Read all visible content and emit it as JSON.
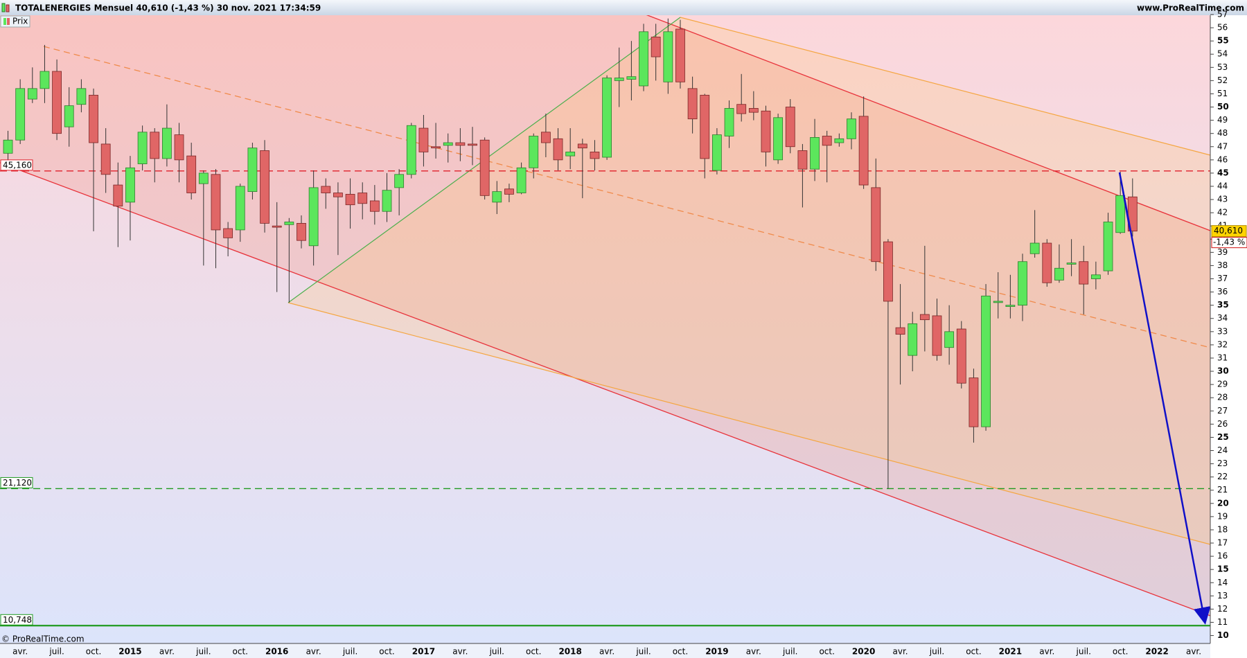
{
  "chart_data": {
    "type": "candlestick",
    "title": "TOTALENERGIES Mensuel 40,610 (-1,43 %) 30 nov. 2021 17:34:59",
    "website": "www.ProRealTime.com",
    "copyright": "© ProRealTime.com",
    "legend": "Prix",
    "up_color": "#5ce65c",
    "down_color": "#e06666",
    "categories": [
      null,
      "avr.",
      null,
      null,
      "juil.",
      null,
      null,
      "oct.",
      null,
      null,
      "2015",
      null,
      null,
      "avr.",
      null,
      null,
      "juil.",
      null,
      null,
      "oct.",
      null,
      null,
      "2016",
      null,
      null,
      "avr.",
      null,
      null,
      "juil.",
      null,
      null,
      "oct.",
      null,
      null,
      "2017",
      null,
      null,
      "avr.",
      null,
      null,
      "juil.",
      null,
      null,
      "oct.",
      null,
      null,
      "2018",
      null,
      null,
      "avr.",
      null,
      null,
      "juil.",
      null,
      null,
      "oct.",
      null,
      null,
      "2019",
      null,
      null,
      "avr.",
      null,
      null,
      "juil.",
      null,
      null,
      "oct.",
      null,
      null,
      "2020",
      null,
      null,
      "avr.",
      null,
      null,
      "juil.",
      null,
      null,
      "oct.",
      null,
      null,
      "2021",
      null,
      null,
      "avr.",
      null,
      null,
      "juil.",
      null,
      null,
      "oct.",
      null,
      null,
      "2022",
      null,
      null,
      "avr.",
      null
    ],
    "open": [
      46.5,
      47.5,
      50.6,
      51.4,
      52.7,
      48.5,
      50.2,
      50.9,
      47.2,
      44.1,
      42.8,
      45.7,
      48.1,
      46.1,
      47.9,
      46.3,
      44.2,
      44.9,
      40.8,
      40.7,
      43.6,
      46.7,
      41.0,
      41.1,
      41.2,
      39.5,
      44.0,
      43.5,
      43.4,
      43.5,
      42.9,
      42.1,
      43.9,
      44.9,
      48.4,
      47.0,
      47.1,
      47.3,
      47.2,
      47.5,
      42.8,
      43.8,
      43.5,
      45.4,
      48.1,
      47.6,
      46.3,
      47.2,
      46.6,
      46.2,
      52.0,
      52.1,
      51.6,
      55.3,
      51.9,
      55.9,
      51.4,
      50.9,
      45.2,
      47.8,
      50.2,
      49.9,
      49.7,
      46.0,
      50.0,
      46.7,
      45.3,
      47.8,
      47.3,
      47.6,
      49.3,
      43.9,
      39.8,
      33.3,
      31.2,
      34.3,
      34.2,
      31.8,
      33.2,
      29.5,
      25.8,
      35.2,
      34.9,
      35.0,
      38.9,
      39.7,
      36.9,
      38.1,
      38.3,
      37.0,
      37.6,
      40.5,
      43.2,
      null,
      null,
      null,
      null,
      null,
      null
    ],
    "high": [
      48.2,
      52.1,
      53.0,
      54.7,
      53.6,
      51.5,
      52.1,
      51.4,
      48.4,
      45.8,
      46.3,
      48.6,
      48.4,
      50.2,
      48.8,
      47.3,
      45.2,
      45.3,
      41.3,
      44.2,
      47.3,
      47.5,
      42.8,
      41.6,
      41.8,
      45.2,
      44.6,
      44.3,
      44.6,
      44.3,
      44.1,
      45.0,
      45.3,
      48.8,
      49.4,
      48.8,
      48.0,
      48.4,
      48.5,
      47.7,
      44.4,
      44.2,
      45.8,
      48.0,
      49.5,
      48.4,
      48.4,
      47.6,
      47.5,
      52.4,
      54.5,
      55.0,
      56.3,
      56.3,
      56.7,
      56.6,
      52.3,
      51.0,
      48.4,
      50.5,
      52.5,
      51.2,
      50.1,
      49.5,
      50.6,
      47.2,
      49.1,
      48.2,
      48.0,
      49.6,
      50.8,
      46.1,
      40.0,
      36.6,
      34.5,
      39.5,
      35.5,
      35.0,
      33.8,
      30.2,
      36.6,
      37.5,
      37.3,
      38.9,
      42.2,
      40.0,
      39.6,
      40.0,
      39.5,
      38.3,
      42.0,
      45.1,
      44.6,
      null,
      null,
      null,
      null,
      null,
      null
    ],
    "low": [
      45.5,
      47.2,
      50.3,
      50.3,
      47.5,
      47.0,
      49.6,
      40.6,
      43.5,
      39.4,
      39.9,
      45.2,
      44.3,
      45.5,
      44.3,
      43.0,
      38.0,
      37.8,
      38.7,
      39.8,
      43.0,
      40.5,
      36.0,
      35.2,
      39.3,
      38.0,
      42.3,
      38.8,
      40.8,
      41.5,
      41.1,
      41.3,
      41.8,
      44.6,
      45.5,
      46.1,
      45.8,
      45.9,
      45.6,
      43.0,
      41.9,
      42.8,
      43.4,
      44.6,
      46.2,
      45.2,
      45.3,
      43.1,
      45.2,
      46.0,
      50.0,
      50.5,
      51.2,
      52.0,
      51.0,
      51.4,
      48.0,
      44.6,
      44.9,
      46.9,
      48.9,
      49.0,
      45.5,
      45.7,
      46.5,
      42.4,
      44.4,
      44.3,
      47.0,
      46.8,
      43.8,
      37.6,
      21.12,
      29.0,
      30.0,
      31.5,
      30.8,
      30.5,
      28.7,
      24.6,
      25.5,
      34.0,
      34.0,
      33.8,
      38.6,
      36.4,
      36.7,
      37.2,
      34.3,
      36.2,
      37.3,
      40.4,
      40.2,
      null,
      null,
      null,
      null,
      null,
      null
    ],
    "close": [
      47.5,
      51.4,
      51.4,
      52.7,
      48.0,
      50.1,
      51.4,
      47.3,
      44.9,
      42.5,
      45.4,
      48.1,
      46.1,
      48.4,
      46.0,
      43.5,
      45.0,
      40.7,
      40.1,
      44.0,
      46.9,
      41.2,
      40.9,
      41.3,
      39.9,
      43.9,
      43.5,
      43.2,
      42.6,
      42.7,
      42.1,
      43.7,
      44.9,
      48.6,
      46.6,
      46.9,
      47.3,
      47.1,
      47.1,
      43.3,
      43.6,
      43.4,
      45.4,
      47.8,
      47.3,
      46.0,
      46.6,
      46.9,
      46.1,
      52.2,
      52.2,
      52.3,
      55.7,
      53.8,
      55.7,
      51.9,
      49.1,
      46.1,
      47.9,
      49.9,
      49.5,
      49.6,
      46.6,
      49.2,
      47.0,
      45.3,
      47.7,
      47.1,
      47.6,
      49.1,
      44.1,
      38.3,
      35.3,
      32.8,
      33.6,
      33.9,
      31.2,
      33.0,
      29.1,
      25.8,
      35.7,
      35.3,
      35.0,
      38.3,
      39.7,
      36.7,
      37.8,
      38.2,
      36.6,
      37.3,
      41.3,
      43.3,
      40.61,
      null,
      null,
      null,
      null,
      null,
      null
    ],
    "ylim": [
      9.4,
      57
    ],
    "yticks": [
      10,
      11,
      12,
      13,
      14,
      15,
      16,
      17,
      18,
      19,
      20,
      21,
      22,
      23,
      24,
      25,
      26,
      27,
      28,
      29,
      30,
      31,
      32,
      33,
      34,
      35,
      36,
      37,
      38,
      39,
      40,
      41,
      42,
      43,
      44,
      45,
      46,
      47,
      48,
      49,
      50,
      51,
      52,
      53,
      54,
      55,
      56,
      57
    ],
    "levels": [
      {
        "value": 45.16,
        "label": "45,160",
        "color": "#e0202a",
        "style": "dashed"
      },
      {
        "value": 21.12,
        "label": "21,120",
        "color": "#1f9a1f",
        "style": "dashed"
      },
      {
        "value": 10.748,
        "label": "10,748",
        "color": "#1f9a1f",
        "style": "solid"
      }
    ],
    "last": {
      "value": 40.61,
      "label": "40,610"
    },
    "change": {
      "value": -1.43,
      "label": "-1,43 %"
    }
  }
}
